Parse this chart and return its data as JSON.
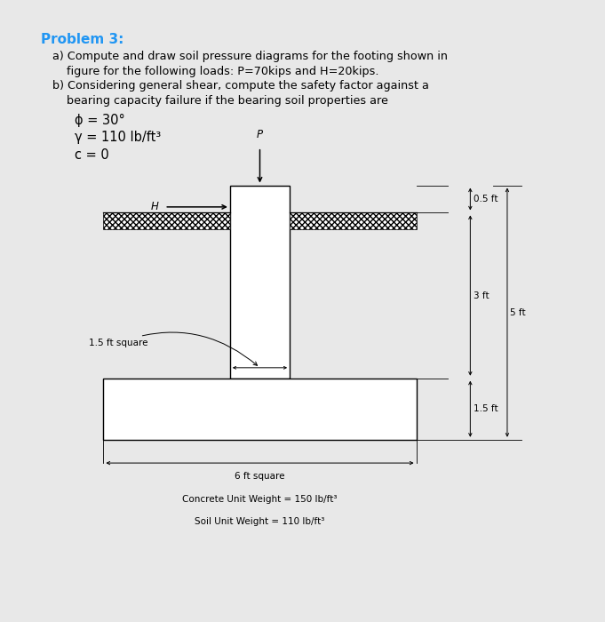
{
  "title": "Problem 3:",
  "title_color": "#2196F3",
  "bg_color": "#ffffff",
  "outer_bg": "#e8e8e8",
  "text_a_line1": "a) Compute and draw soil pressure diagrams for the footing shown in",
  "text_a_line2": "    figure for the following loads: P=70kips and H=20kips.",
  "text_b_line1": "b) Considering general shear, compute the safety factor against a",
  "text_b_line2": "    bearing capacity failure if the bearing soil properties are",
  "phi_text": "ϕ = 30°",
  "gamma_text": "γ = 110 lb/ft³",
  "c_text": "c = 0",
  "dim_05": "0.5 ft",
  "dim_3": "3 ft",
  "dim_5": "5 ft",
  "dim_15a": "1.5 ft square",
  "dim_15b": "1.5 ft",
  "dim_6": "6 ft square",
  "concrete_text": "Concrete Unit Weight = 150 lb/ft³",
  "soil_text": "Soil Unit Weight = 110 lb/ft³",
  "label_H": "H",
  "label_P": "P"
}
